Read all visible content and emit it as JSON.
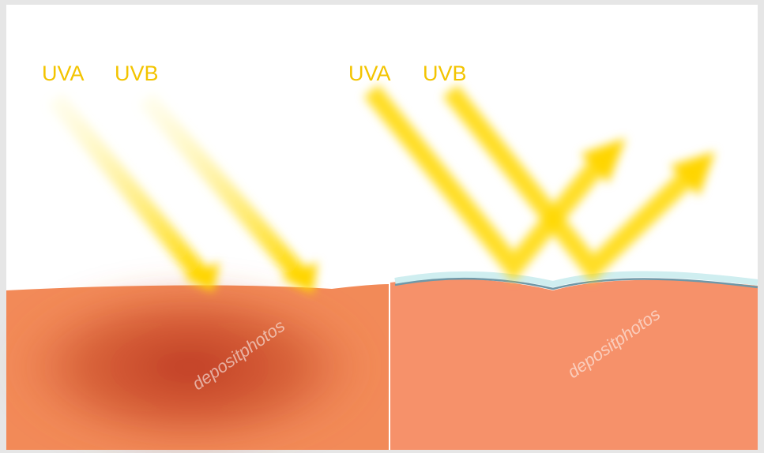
{
  "panels": [
    {
      "labels": [
        "UVA",
        "UVB"
      ]
    },
    {
      "labels": [
        "UVA",
        "UVB"
      ]
    }
  ],
  "watermark": "depositphotos"
}
